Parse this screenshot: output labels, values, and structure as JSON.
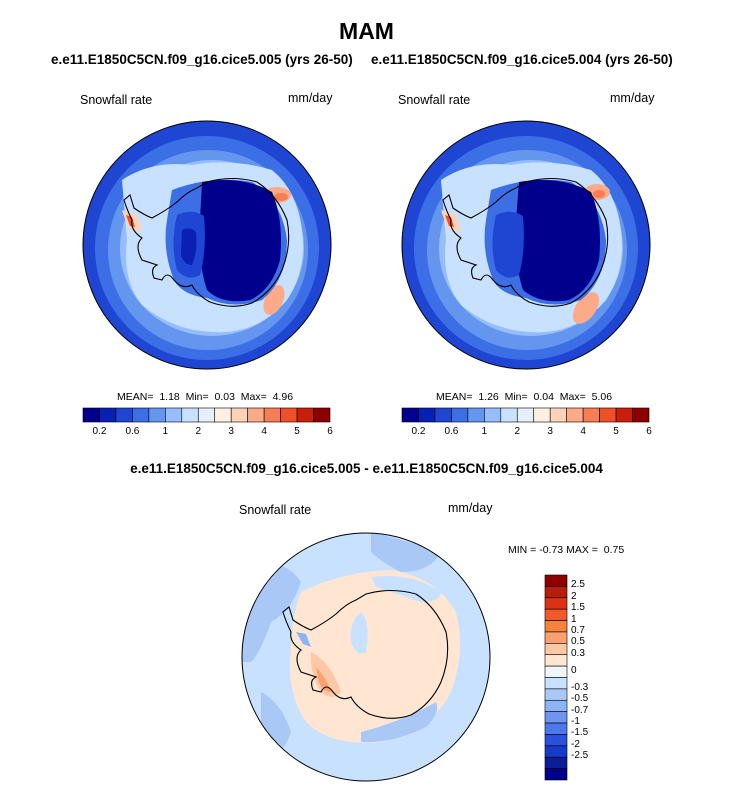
{
  "figure": {
    "title": "MAM",
    "panels": [
      {
        "subtitle": "e.e11.E1850C5CN.f09_g16.cice5.005 (yrs 26-50)",
        "variable": "Snowfall rate",
        "units": "mm/day",
        "mean": "1.18",
        "min": "0.03",
        "max": "4.96"
      },
      {
        "subtitle": "e.e11.E1850C5CN.f09_g16.cice5.004 (yrs 26-50)",
        "variable": "Snowfall rate",
        "units": "mm/day",
        "mean": "1.26",
        "min": "0.04",
        "max": "5.06"
      }
    ],
    "diff": {
      "subtitle": "e.e11.E1850C5CN.f09_g16.cice5.005 - e.e11.E1850C5CN.f09_g16.cice5.004",
      "variable": "Snowfall rate",
      "units": "mm/day",
      "min": "-0.73",
      "max": "0.75",
      "min_label": "MIN =",
      "max_label": "MAX ="
    },
    "stat_labels": {
      "mean": "MEAN=",
      "min": "Min=",
      "max": "Max="
    },
    "colorbar_main": {
      "colors": [
        "#00008c",
        "#0a1fb4",
        "#1e46d2",
        "#3c6ee6",
        "#6496f0",
        "#96beff",
        "#c8e1ff",
        "#e6f0fa",
        "#fff0e1",
        "#fdd2b9",
        "#fcaa87",
        "#f77d55",
        "#f05028",
        "#c81e0a",
        "#8c0000"
      ],
      "tick_labels": [
        "0.2",
        "0.6",
        "1",
        "2",
        "3",
        "4",
        "5",
        "6"
      ]
    },
    "colorbar_diff": {
      "colors": [
        "#8c0000",
        "#b41e0a",
        "#dc3214",
        "#f05a28",
        "#f7823c",
        "#fba06e",
        "#fdc8a5",
        "#ffe6d2",
        "#f0f5fa",
        "#c8e1ff",
        "#aac8f5",
        "#8cb4f5",
        "#6e96f0",
        "#4b78eb",
        "#2850dc",
        "#143cc8",
        "#0a1e96",
        "#00008c"
      ],
      "tick_labels": [
        "2.5",
        "2",
        "1.5",
        "1",
        "0.7",
        "0.5",
        "0.3",
        "0",
        "-0.3",
        "-0.5",
        "-0.7",
        "-1",
        "-1.5",
        "-2",
        "-2.5"
      ]
    }
  }
}
